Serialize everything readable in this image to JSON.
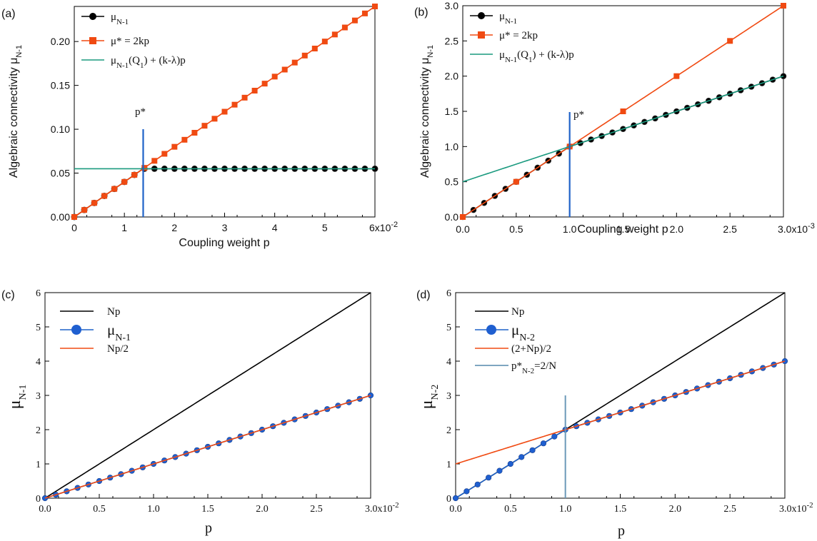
{
  "colors": {
    "black": "#000000",
    "orange": "#f04a12",
    "teal": "#1a9a7f",
    "blue_line": "#1f62c8",
    "blue_dot": "#1f5fd0",
    "steel": "#6b99b8"
  },
  "chart_data": [
    {
      "panel_label": "(a)",
      "type": "line",
      "xlabel": "Coupling weight p",
      "ylabel": "Algebraic connectivity μN-1",
      "xlim": [
        0,
        6
      ],
      "ylim": [
        0,
        0.24
      ],
      "x_scale_note": "6x10-2",
      "xticks": [
        "0",
        "1",
        "2",
        "3",
        "4",
        "5",
        "6x10-2"
      ],
      "yticks": [
        "0.00",
        "0.05",
        "0.10",
        "0.15",
        "0.20"
      ],
      "ytick_values": [
        0,
        0.05,
        0.1,
        0.15,
        0.2
      ],
      "grid": false,
      "legend": "top-left",
      "annotation": "p*",
      "p_star": 1.375,
      "series": [
        {
          "legend_label": "μN-1",
          "kind": "line+markers",
          "marker": "circle",
          "color": "black",
          "x_from": 0,
          "x_to": 6,
          "x_step": 0.2,
          "rule": "min(2*0.02*x, 0.055)"
        },
        {
          "legend_label": "μ* = 2kp",
          "kind": "line+markers",
          "marker": "square",
          "color": "orange",
          "x_from": 0,
          "x_to": 6,
          "x_step": 0.2,
          "rule": "0.04*x"
        },
        {
          "legend_label": "μN-1(Q1) + (k-λ)p",
          "kind": "line",
          "color": "teal",
          "x_from": 0,
          "x_to": 6,
          "rule": "0.055"
        }
      ]
    },
    {
      "panel_label": "(b)",
      "type": "line",
      "xlabel": "Coupling weight p",
      "ylabel": "Algebraic connectivity μN-1",
      "xlim": [
        0,
        3
      ],
      "ylim": [
        0,
        3
      ],
      "x_scale_note": "3.0x10-3",
      "xticks": [
        "0.0",
        "0.5",
        "1.0",
        "1.5",
        "2.0",
        "2.5",
        "3.0x10-3"
      ],
      "yticks": [
        "0.0",
        "0.5",
        "1.0",
        "1.5",
        "2.0",
        "2.5",
        "3.0"
      ],
      "ytick_values": [
        0,
        0.5,
        1,
        1.5,
        2,
        2.5,
        3
      ],
      "grid": false,
      "legend": "top-left",
      "annotation": "p*",
      "p_star": 1.0,
      "series": [
        {
          "legend_label": "μN-1",
          "kind": "line+markers",
          "marker": "circle",
          "color": "black",
          "x_from": 0,
          "x_to": 3,
          "x_step": 0.1,
          "rule": "x<=1 ? x : 0.5 + 0.5*x"
        },
        {
          "legend_label": "μ* = 2kp",
          "kind": "line+markers",
          "marker": "square",
          "color": "orange",
          "x_from": 0,
          "x_to": 3,
          "x_step": 0.5,
          "rule": "x"
        },
        {
          "legend_label": "μN-1(Q1) + (k-λ)p",
          "kind": "line",
          "color": "teal",
          "x_from": 0,
          "x_to": 3,
          "rule": "0.5 + 0.5*x"
        }
      ]
    },
    {
      "panel_label": "(c)",
      "type": "line",
      "xlabel": "p",
      "ylabel": "μN-1",
      "xlim": [
        0,
        3
      ],
      "ylim": [
        0,
        6
      ],
      "x_scale_note": "3.0x10-2",
      "xticks": [
        "0.0",
        "0.5",
        "1.0",
        "1.5",
        "2.0",
        "2.5",
        "3.0x10-2"
      ],
      "yticks": [
        "0",
        "1",
        "2",
        "3",
        "4",
        "5",
        "6"
      ],
      "ytick_values": [
        0,
        1,
        2,
        3,
        4,
        5,
        6
      ],
      "grid": false,
      "legend": "top-left",
      "series": [
        {
          "legend_label": "Np",
          "kind": "line",
          "color": "black",
          "x_from": 0,
          "x_to": 3,
          "rule": "2*x"
        },
        {
          "legend_label": "μN-1",
          "kind": "line+markers",
          "marker": "circle",
          "color": "blue",
          "x_from": 0,
          "x_to": 3,
          "x_step": 0.1,
          "rule": "x"
        },
        {
          "legend_label": "Np/2",
          "kind": "line",
          "color": "orange",
          "x_from": 0,
          "x_to": 3,
          "rule": "x"
        }
      ]
    },
    {
      "panel_label": "(d)",
      "type": "line",
      "xlabel": "p",
      "ylabel": "μN-2",
      "xlim": [
        0,
        3
      ],
      "ylim": [
        0,
        6
      ],
      "x_scale_note": "3.0x10-2",
      "xticks": [
        "0.0",
        "0.5",
        "1.0",
        "1.5",
        "2.0",
        "2.5",
        "3.0x10-2"
      ],
      "yticks": [
        "0",
        "1",
        "2",
        "3",
        "4",
        "5",
        "6"
      ],
      "ytick_values": [
        0,
        1,
        2,
        3,
        4,
        5,
        6
      ],
      "grid": false,
      "legend": "top-left",
      "p_star": 1.0,
      "series": [
        {
          "legend_label": "Np",
          "kind": "line",
          "color": "black",
          "x_from": 0,
          "x_to": 3,
          "rule": "2*x"
        },
        {
          "legend_label": "μN-2",
          "kind": "line+markers",
          "marker": "circle",
          "color": "blue",
          "x_from": 0,
          "x_to": 3,
          "x_step": 0.1,
          "rule": "x<=1 ? 2*x : 1 + x"
        },
        {
          "legend_label": "(2+Np)/2",
          "kind": "line",
          "color": "orange",
          "x_from": 0,
          "x_to": 3,
          "rule": "1 + x"
        },
        {
          "legend_label": "p*N-2=2/N",
          "kind": "vline",
          "color": "steel",
          "x": 1.0,
          "y_to": 3
        }
      ]
    }
  ]
}
